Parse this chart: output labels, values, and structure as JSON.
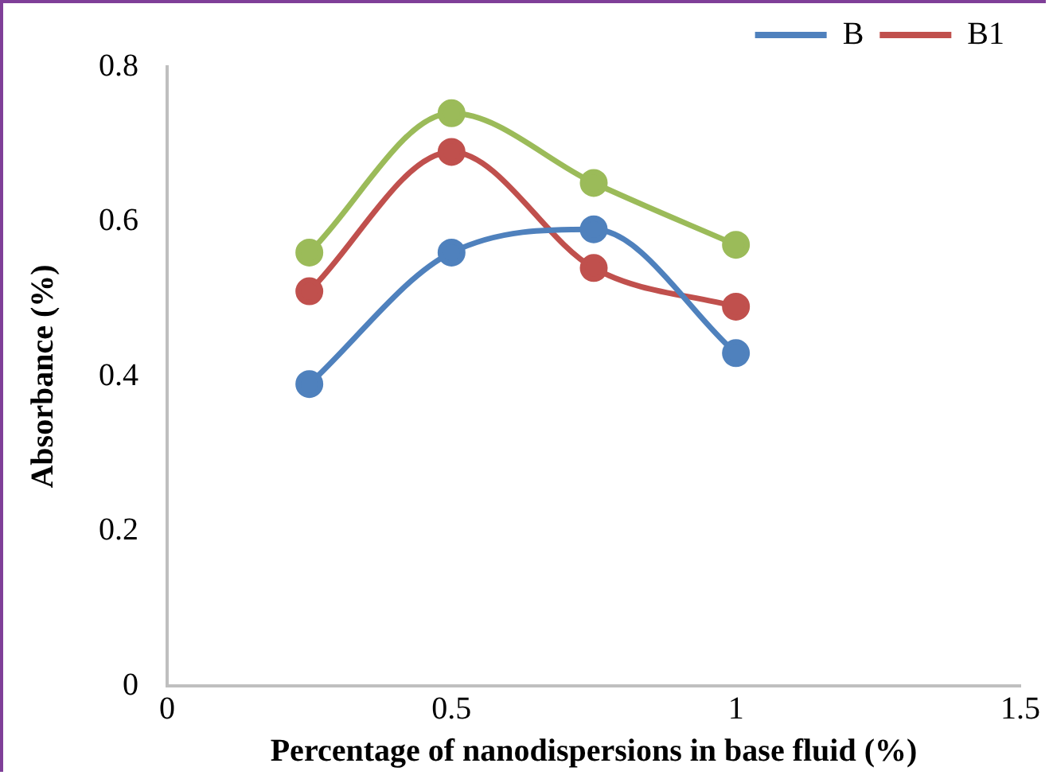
{
  "chart_data": {
    "type": "line",
    "xlabel": "Percentage of nanodispersions in base fluid (%)",
    "ylabel": "Absorbance (%)",
    "x": [
      0.25,
      0.5,
      0.75,
      1
    ],
    "series": [
      {
        "name": "B",
        "color": "#4f81bd",
        "values": [
          0.39,
          0.56,
          0.59,
          0.43
        ]
      },
      {
        "name": "B1",
        "color": "#c0504d",
        "values": [
          0.51,
          0.69,
          0.54,
          0.49
        ]
      },
      {
        "color": "#9bbb59",
        "values": [
          0.56,
          0.74,
          0.65,
          0.57
        ]
      }
    ],
    "xlim": [
      0,
      1.5
    ],
    "xticks": [
      0,
      0.5,
      1,
      1.5
    ],
    "ylim": [
      0,
      0.8
    ],
    "yticks": [
      0,
      0.2,
      0.4,
      0.6,
      0.8
    ],
    "grid": false,
    "legend": "top right",
    "marker": "circle",
    "line_style": "solid"
  }
}
